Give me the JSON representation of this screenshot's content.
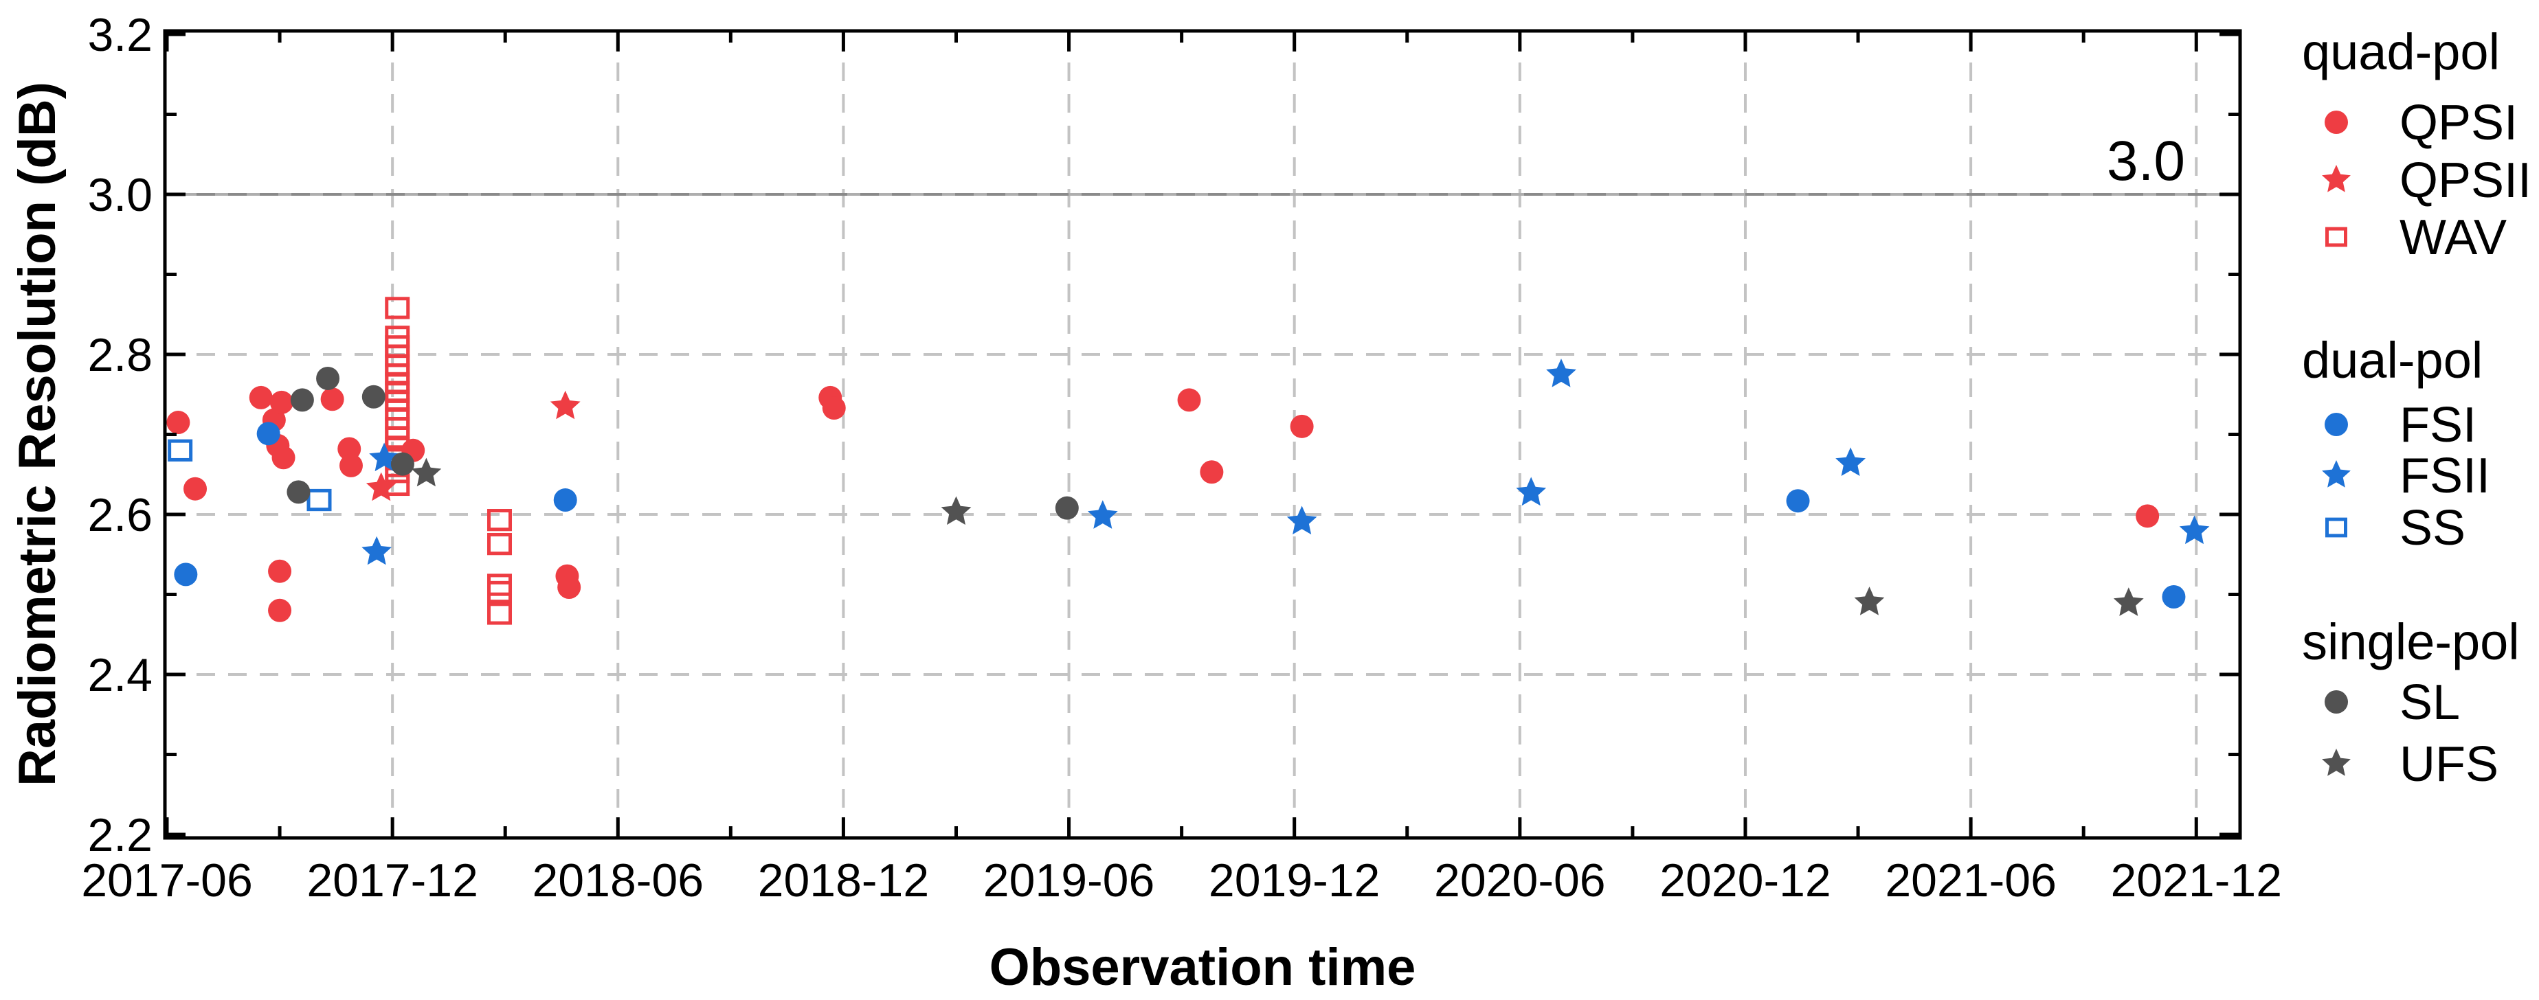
{
  "chart_data": {
    "type": "scatter",
    "title": "",
    "xlabel": "Observation time",
    "ylabel": "Radiometric Resolution (dB)",
    "annotation": {
      "text": "3.0",
      "color": "#b8b8b8"
    },
    "reference_line": {
      "value": 3.0
    },
    "x_axis": {
      "unit": "months since 2017-06",
      "major_tick_months": [
        0,
        6,
        12,
        18,
        24,
        30,
        36,
        42,
        48,
        54
      ],
      "major_tick_labels": [
        "2017-06",
        "2017-12",
        "2018-06",
        "2018-12",
        "2019-06",
        "2019-12",
        "2020-06",
        "2020-12",
        "2021-06",
        "2021-12"
      ],
      "minor_tick_months": [
        3,
        9,
        15,
        21,
        27,
        33,
        39,
        45,
        51
      ],
      "xlim_months": [
        -0.06,
        55.17
      ],
      "gridlines_at_months": [
        6,
        12,
        18,
        24,
        30,
        36,
        42,
        48,
        54
      ]
    },
    "y_axis": {
      "major_ticks": [
        2.2,
        2.4,
        2.6,
        2.8,
        3.0,
        3.2
      ],
      "major_tick_labels": [
        "2.2",
        "2.4",
        "2.6",
        "2.8",
        "3.0",
        "3.2"
      ],
      "minor_ticks": [
        2.3,
        2.5,
        2.7,
        2.9,
        3.1
      ],
      "ylim": [
        2.2,
        3.2
      ],
      "gridlines_at": [
        2.4,
        2.6,
        2.8,
        3.0
      ]
    },
    "colors": {
      "red": "#ee3d43",
      "blue": "#1e72d6",
      "gray": "#525252",
      "grid": "#c3c3c3",
      "ref_line_base": "#aeaeae",
      "ref_line_dash": "#8a8a8a",
      "axis": "#000000"
    },
    "grid": true,
    "legend_position": "right-outside",
    "groups": [
      {
        "name": "quad-pol",
        "series": [
          {
            "name": "QPSI",
            "marker": "circle",
            "fill": "solid",
            "color": "#ee3d43",
            "points": [
              [
                0.3,
                2.715
              ],
              [
                0.75,
                2.632
              ],
              [
                2.5,
                2.746
              ],
              [
                2.85,
                2.718
              ],
              [
                2.95,
                2.686
              ],
              [
                3.05,
                2.74
              ],
              [
                3.1,
                2.671
              ],
              [
                3.0,
                2.529
              ],
              [
                3.0,
                2.48
              ],
              [
                4.4,
                2.744
              ],
              [
                4.85,
                2.682
              ],
              [
                4.9,
                2.661
              ],
              [
                6.55,
                2.68
              ],
              [
                10.65,
                2.523
              ],
              [
                10.7,
                2.509
              ],
              [
                17.65,
                2.746
              ],
              [
                17.75,
                2.733
              ],
              [
                27.2,
                2.743
              ],
              [
                27.8,
                2.653
              ],
              [
                30.2,
                2.71
              ],
              [
                52.7,
                2.598
              ]
            ]
          },
          {
            "name": "QPSII",
            "marker": "star",
            "fill": "solid",
            "color": "#ee3d43",
            "points": [
              [
                5.7,
                2.633
              ],
              [
                10.6,
                2.735
              ]
            ]
          },
          {
            "name": "WAV",
            "marker": "square",
            "fill": "open",
            "color": "#ee3d43",
            "points": [
              [
                6.13,
                2.858
              ],
              [
                6.13,
                2.822
              ],
              [
                6.13,
                2.81
              ],
              [
                6.13,
                2.798
              ],
              [
                6.13,
                2.786
              ],
              [
                6.13,
                2.775
              ],
              [
                6.13,
                2.764
              ],
              [
                6.13,
                2.753
              ],
              [
                6.13,
                2.742
              ],
              [
                6.13,
                2.731
              ],
              [
                6.13,
                2.72
              ],
              [
                6.13,
                2.708
              ],
              [
                6.13,
                2.696
              ],
              [
                6.13,
                2.683
              ],
              [
                6.13,
                2.669
              ],
              [
                6.13,
                2.653
              ],
              [
                6.13,
                2.637
              ],
              [
                8.85,
                2.593
              ],
              [
                8.85,
                2.563
              ],
              [
                8.85,
                2.512
              ],
              [
                8.85,
                2.503
              ],
              [
                8.85,
                2.476
              ]
            ]
          }
        ]
      },
      {
        "name": "dual-pol",
        "series": [
          {
            "name": "FSI",
            "marker": "circle",
            "fill": "solid",
            "color": "#1e72d6",
            "points": [
              [
                0.5,
                2.525
              ],
              [
                2.7,
                2.701
              ],
              [
                10.6,
                2.618
              ],
              [
                43.4,
                2.617
              ],
              [
                53.4,
                2.497
              ]
            ]
          },
          {
            "name": "FSII",
            "marker": "star",
            "fill": "solid",
            "color": "#1e72d6",
            "points": [
              [
                5.58,
                2.553
              ],
              [
                5.78,
                2.67
              ],
              [
                24.9,
                2.598
              ],
              [
                30.2,
                2.591
              ],
              [
                36.3,
                2.627
              ],
              [
                37.1,
                2.775
              ],
              [
                44.8,
                2.664
              ],
              [
                53.95,
                2.579
              ]
            ]
          },
          {
            "name": "SS",
            "marker": "square",
            "fill": "open",
            "color": "#1e72d6",
            "points": [
              [
                0.35,
                2.68
              ],
              [
                4.05,
                2.618
              ]
            ]
          }
        ]
      },
      {
        "name": "single-pol",
        "series": [
          {
            "name": "SL",
            "marker": "circle",
            "fill": "solid",
            "color": "#525252",
            "points": [
              [
                3.5,
                2.628
              ],
              [
                3.6,
                2.743
              ],
              [
                4.28,
                2.77
              ],
              [
                5.5,
                2.747
              ],
              [
                6.27,
                2.663
              ],
              [
                23.95,
                2.608
              ]
            ]
          },
          {
            "name": "UFS",
            "marker": "star",
            "fill": "solid",
            "color": "#525252",
            "points": [
              [
                6.9,
                2.651
              ],
              [
                21.0,
                2.603
              ],
              [
                45.3,
                2.49
              ],
              [
                52.2,
                2.489
              ]
            ]
          }
        ]
      }
    ]
  }
}
